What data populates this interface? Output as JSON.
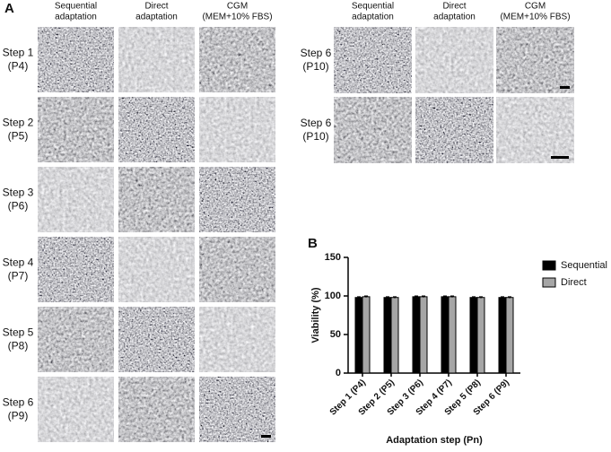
{
  "panel_a": {
    "label": "A",
    "columns": [
      [
        "Sequential",
        "adaptation"
      ],
      [
        "Direct",
        "adaptation"
      ],
      [
        "CGM",
        "(MEM+10% FBS)"
      ]
    ],
    "rows": [
      [
        "Step 1",
        "(P4)"
      ],
      [
        "Step 2",
        "(P5)"
      ],
      [
        "Step 3",
        "(P6)"
      ],
      [
        "Step 4",
        "(P7)"
      ],
      [
        "Step 5",
        "(P8)"
      ],
      [
        "Step 6",
        "(P9)"
      ]
    ]
  },
  "panel_a_right": {
    "columns": [
      [
        "Sequential",
        "adaptation"
      ],
      [
        "Direct",
        "adaptation"
      ],
      [
        "CGM",
        "(MEM+10% FBS)"
      ]
    ],
    "rows": [
      [
        "Step 6",
        "(P10)"
      ],
      [
        "Step 6",
        "(P10)"
      ]
    ]
  },
  "chart_data": {
    "type": "bar",
    "panel_label": "B",
    "x_label": "Adaptation step (Pn)",
    "y_label": "Viability (%)",
    "categories": [
      "Step 1 (P4)",
      "Step 2 (P5)",
      "Step 3 (P6)",
      "Step 4 (P7)",
      "Step 5 (P8)",
      "Step 6 (P9)"
    ],
    "series": [
      {
        "name": "Sequential",
        "color": "#000000",
        "values": [
          98,
          98,
          99,
          99,
          98,
          98
        ],
        "errors": [
          1,
          1,
          1,
          1,
          1,
          1
        ]
      },
      {
        "name": "Direct",
        "color": "#a6a6a6",
        "values": [
          99,
          98,
          99,
          99,
          98,
          98
        ],
        "errors": [
          1,
          1,
          1,
          1,
          1,
          1
        ]
      }
    ],
    "ylim": [
      0,
      150
    ],
    "yticks": [
      0,
      50,
      100,
      150
    ],
    "legend": "upper right"
  }
}
